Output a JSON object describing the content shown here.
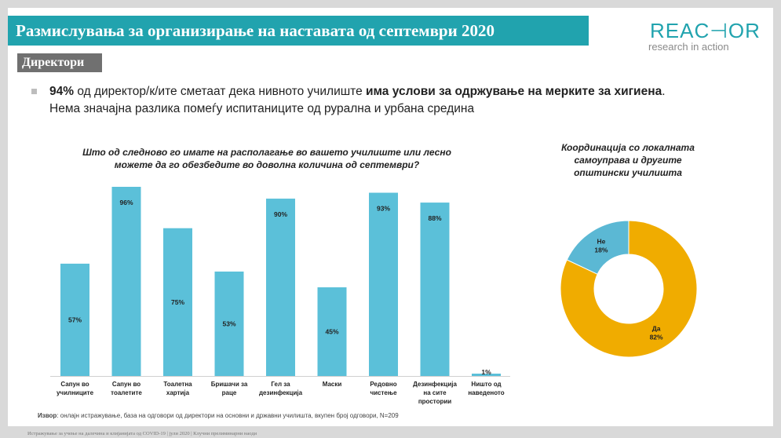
{
  "slide_title": "Размислувања за организирање на наставата од септември 2020",
  "section_label": "Директори",
  "logo": {
    "word": "REAC⊣OR",
    "tagline": "research in action"
  },
  "bullet": {
    "pct": "94%",
    "text_a": " од директор/к/ите сметаат дека нивното училиште ",
    "bold_b": "има услови за одржување на мерките за хигиена",
    "text_c": ".",
    "line2": "Нема значајна разлика помеѓу испитаниците од рурална и урбана средина"
  },
  "source": {
    "label": "Извор",
    "text": ": онлајн истражување, база на одговори од директори на основни и државни училишта, вкупен број одговори, N=209"
  },
  "footer": "Истражување за учење на далечина и клијанијата од COVID-19  |  јули 2020 |  Клучни прелиминарни наоди",
  "colors": {
    "bar": "#5bc0d9",
    "donut_yes": "#f0ac00",
    "donut_no": "#5bb8d4",
    "title_bar": "#21a3ae"
  },
  "chart_data": [
    {
      "type": "bar",
      "title": "Што од следново го имате на располагање во вашето училиште или лесно можете да го обезбедите во доволна количина од септември?",
      "categories": [
        [
          "Сапун во",
          "училниците"
        ],
        [
          "Сапун во",
          "тоалетите"
        ],
        [
          "Тоалетна",
          "хартија"
        ],
        [
          "Бришачи за",
          "раце"
        ],
        [
          "Гел за",
          "дезинфекција"
        ],
        [
          "Маски"
        ],
        [
          "Редовно",
          "чистење"
        ],
        [
          "Дезинфекција",
          "на сите",
          "простории"
        ],
        [
          "Ништо од",
          "наведеното"
        ]
      ],
      "values": [
        57,
        96,
        75,
        53,
        90,
        45,
        93,
        88,
        1
      ],
      "labels": [
        "57%",
        "96%",
        "75%",
        "53%",
        "90%",
        "45%",
        "93%",
        "88%",
        "1%"
      ],
      "ylim": [
        0,
        100
      ]
    },
    {
      "type": "pie",
      "title": "Координација со локалната самоуправа и другите општински училишта",
      "slices": [
        {
          "name": "Да",
          "value": 82,
          "label": "82%"
        },
        {
          "name": "Не",
          "value": 18,
          "label": "18%"
        }
      ]
    }
  ]
}
